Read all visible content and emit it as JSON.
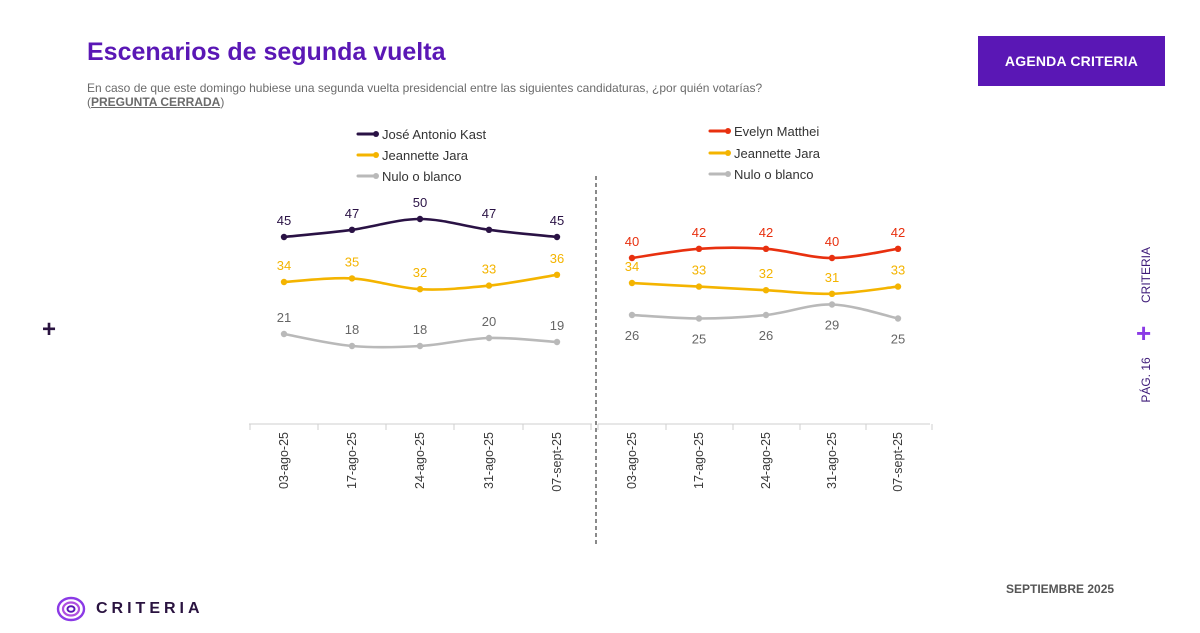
{
  "header": {
    "title": "Escenarios de segunda vuelta",
    "subtitle": "En caso de que este domingo hubiese una segunda vuelta presidencial entre las siguientes candidaturas, ¿por quién votarías?",
    "note_open": "(",
    "note": "PREGUNTA CERRADA",
    "note_close": ")",
    "badge": "AGENDA CRITERIA"
  },
  "side": {
    "brand": "CRITERIA",
    "page": "PÁG. 16",
    "plus": "+"
  },
  "footer": {
    "date": "SEPTIEMBRE 2025",
    "logo_text": "CRITERIA",
    "left_plus": "+"
  },
  "colors": {
    "accent": "#5a17b5",
    "kast": "#2a1245",
    "jara": "#f4b400",
    "matthei": "#e8300f",
    "nulo": "#b9b9b9"
  },
  "chart_data": [
    {
      "type": "line",
      "panel": "left",
      "categories": [
        "03-ago-25",
        "17-ago-25",
        "24-ago-25",
        "31-ago-25",
        "07-sept-25"
      ],
      "series": [
        {
          "name": "José Antonio Kast",
          "color": "#2a1245",
          "values": [
            45,
            47,
            50,
            47,
            45
          ]
        },
        {
          "name": "Jeannette Jara",
          "color": "#f4b400",
          "values": [
            34,
            35,
            32,
            33,
            36
          ]
        },
        {
          "name": "Nulo o blanco",
          "color": "#b9b9b9",
          "values": [
            21,
            18,
            18,
            20,
            19
          ]
        }
      ]
    },
    {
      "type": "line",
      "panel": "right",
      "categories": [
        "03-ago-25",
        "17-ago-25",
        "24-ago-25",
        "31-ago-25",
        "07-sept-25"
      ],
      "series": [
        {
          "name": "Evelyn Matthei",
          "color": "#e8300f",
          "values": [
            40,
            42,
            42,
            40,
            42
          ]
        },
        {
          "name": "Jeannette Jara",
          "color": "#f4b400",
          "values": [
            34,
            33,
            32,
            31,
            33
          ]
        },
        {
          "name": "Nulo o blanco",
          "color": "#b9b9b9",
          "values": [
            26,
            25,
            26,
            29,
            25
          ]
        }
      ]
    }
  ]
}
